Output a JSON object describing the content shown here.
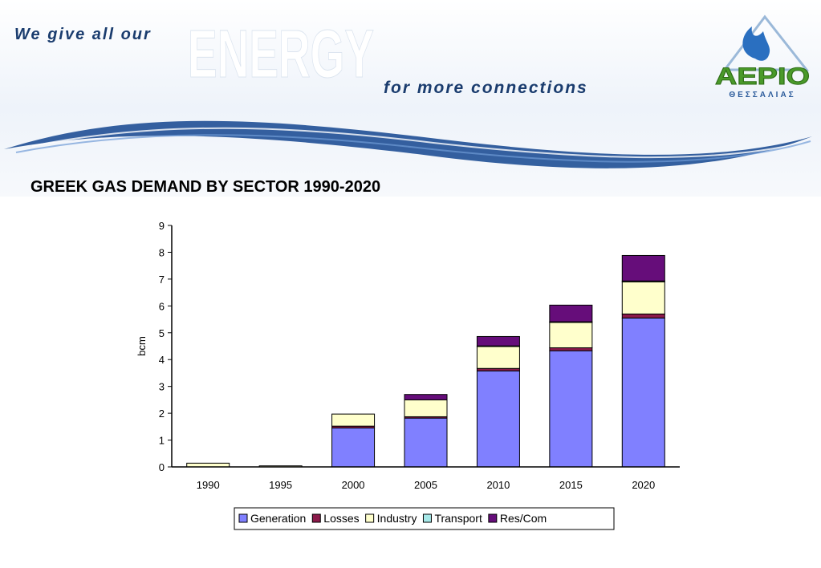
{
  "header": {
    "tagline_part1": "We give all our",
    "energy_word": "ENERGY",
    "tagline_part2": "for more connections",
    "logo_text": "ΑΕΡΙΟ",
    "logo_subtext": "ΘΕΣΣΑΛΙΑΣ"
  },
  "slide_title": "GREEK GAS DEMAND BY SECTOR 1990-2020",
  "colors": {
    "header_text": "#1a3c6e",
    "logo_green": "#4a9a2a",
    "logo_blue": "#2a6fc0"
  },
  "chart_data": {
    "type": "bar",
    "stacked": true,
    "title": "",
    "xlabel": "",
    "ylabel": "bcm",
    "ylim": [
      0,
      9
    ],
    "yticks": [
      "0",
      "1",
      "2",
      "3",
      "4",
      "5",
      "6",
      "7",
      "8",
      "9"
    ],
    "categories": [
      "1990",
      "1995",
      "2000",
      "2005",
      "2010",
      "2015",
      "2020"
    ],
    "series": [
      {
        "name": "Generation",
        "color": "#8080ff",
        "values": [
          0,
          0,
          1.45,
          1.82,
          3.58,
          4.33,
          5.55
        ]
      },
      {
        "name": "Losses",
        "color": "#8b1a4a",
        "values": [
          0,
          0,
          0.07,
          0.05,
          0.09,
          0.11,
          0.15
        ]
      },
      {
        "name": "Industry",
        "color": "#ffffcc",
        "values": [
          0.14,
          0.04,
          0.45,
          0.63,
          0.83,
          0.95,
          1.2
        ]
      },
      {
        "name": "Transport",
        "color": "#a6e8e8",
        "values": [
          0,
          0,
          0,
          0,
          0.01,
          0.02,
          0.03
        ]
      },
      {
        "name": "Res/Com",
        "color": "#660d7a",
        "values": [
          0,
          0,
          0,
          0.2,
          0.35,
          0.62,
          0.95
        ]
      }
    ],
    "grid": false,
    "legend_position": "bottom"
  }
}
